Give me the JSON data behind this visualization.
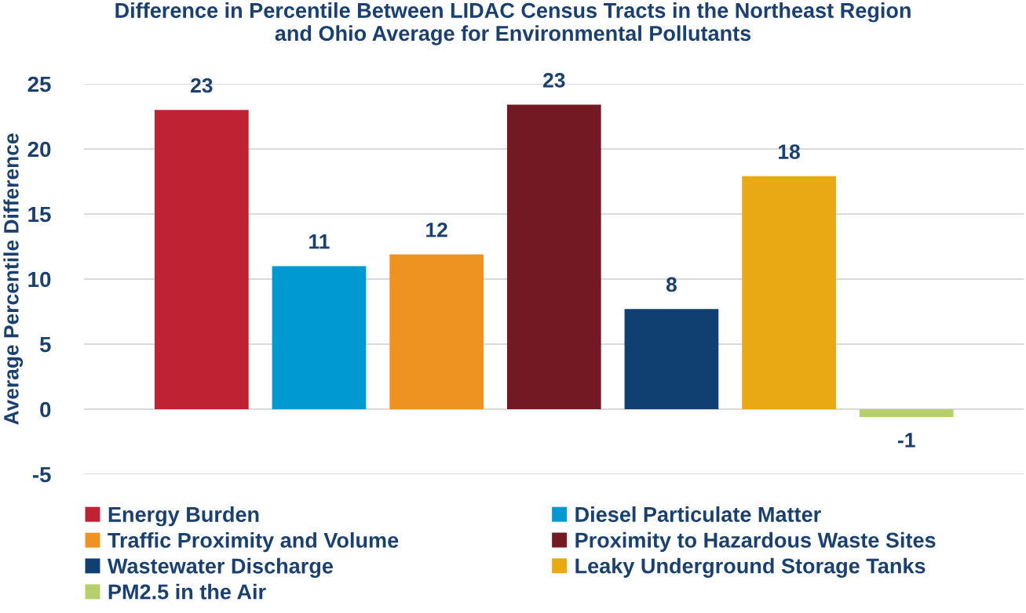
{
  "chart_data": {
    "type": "bar",
    "title": "Difference in Percentile Between LIDAC Census Tracts in the Northeast Region\nand Ohio Average for Environmental Pollutants",
    "ylabel": "Average Percentile Difference",
    "categories": [
      null,
      null,
      null,
      null,
      null,
      null,
      null
    ],
    "stacked": true,
    "series": [
      {
        "name": "Energy Burden",
        "color": "#be2334",
        "values": [
          23.0,
          null,
          null,
          null,
          null,
          null,
          null
        ],
        "value_labels": [
          "23",
          null,
          null,
          null,
          null,
          null,
          null
        ]
      },
      {
        "name": "Diesel Particulate Matter",
        "color": "#0099d1",
        "values": [
          null,
          11.0,
          null,
          null,
          null,
          null,
          null
        ],
        "value_labels": [
          null,
          "11",
          null,
          null,
          null,
          null,
          null
        ]
      },
      {
        "name": "Traffic Proximity and Volume",
        "color": "#ee9322",
        "values": [
          null,
          null,
          11.9,
          null,
          null,
          null,
          null
        ],
        "value_labels": [
          null,
          null,
          "12",
          null,
          null,
          null,
          null
        ]
      },
      {
        "name": "Proximity to Hazardous Waste Sites",
        "color": "#731923",
        "values": [
          null,
          null,
          null,
          23.4,
          null,
          null,
          null
        ],
        "value_labels": [
          null,
          null,
          null,
          "23",
          null,
          null,
          null
        ]
      },
      {
        "name": "Wastewater Discharge",
        "color": "#103f72",
        "values": [
          null,
          null,
          null,
          null,
          7.7,
          null,
          null
        ],
        "value_labels": [
          null,
          null,
          null,
          null,
          "8",
          null,
          null
        ]
      },
      {
        "name": "Leaky Underground Storage Tanks",
        "color": "#e8a913",
        "values": [
          null,
          null,
          null,
          null,
          null,
          17.9,
          null
        ],
        "value_labels": [
          null,
          null,
          null,
          null,
          null,
          "18",
          null
        ]
      },
      {
        "name": "PM2.5 in the Air",
        "color": "#b5d06c",
        "values": [
          null,
          null,
          null,
          null,
          null,
          null,
          -0.6
        ],
        "value_labels": [
          null,
          null,
          null,
          null,
          null,
          null,
          "-1"
        ]
      }
    ],
    "ylim": [
      -5,
      25
    ],
    "yticks": [
      -5,
      0,
      5,
      10,
      15,
      20,
      25
    ],
    "grid": "y",
    "legend": "bottom"
  }
}
